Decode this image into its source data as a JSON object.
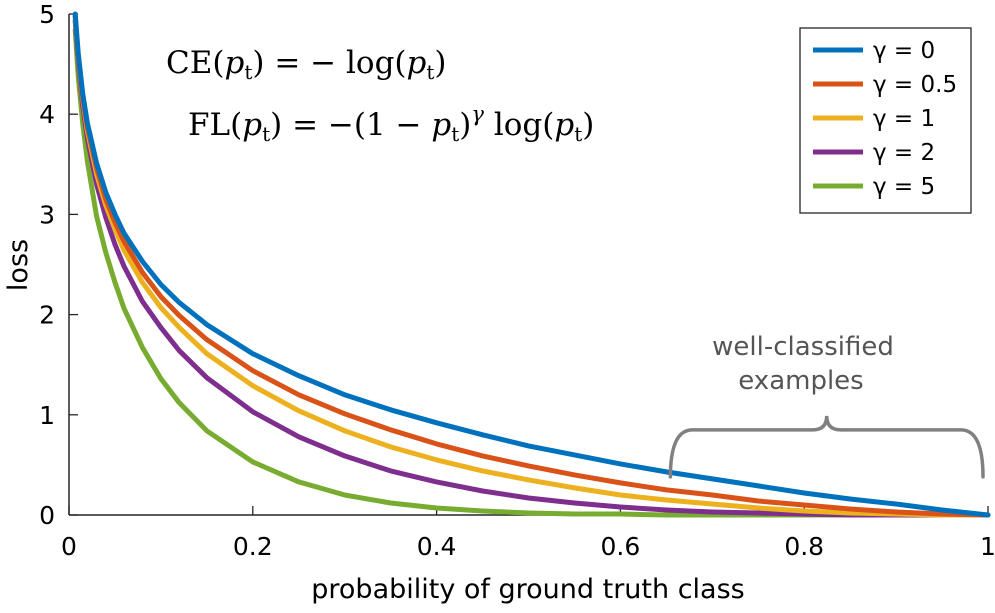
{
  "chart_data": {
    "type": "line",
    "xlabel": "probability of ground truth class",
    "ylabel": "loss",
    "xlim": [
      0,
      1
    ],
    "ylim": [
      0,
      5
    ],
    "xticks": [
      "0",
      "0.2",
      "0.4",
      "0.6",
      "0.8",
      "1"
    ],
    "yticks": [
      "0",
      "1",
      "2",
      "3",
      "4",
      "5"
    ],
    "x": [
      0.0067,
      0.01,
      0.015,
      0.02,
      0.03,
      0.04,
      0.05,
      0.06,
      0.08,
      0.1,
      0.12,
      0.15,
      0.2,
      0.25,
      0.3,
      0.35,
      0.4,
      0.45,
      0.5,
      0.55,
      0.6,
      0.65,
      0.7,
      0.75,
      0.8,
      0.85,
      0.9,
      0.95,
      1.0
    ],
    "series": [
      {
        "name": "γ = 0",
        "color": "#0072BD",
        "gamma": 0,
        "values": [
          5.0,
          4.61,
          4.2,
          3.91,
          3.51,
          3.22,
          3.0,
          2.81,
          2.53,
          2.3,
          2.12,
          1.9,
          1.61,
          1.39,
          1.2,
          1.05,
          0.92,
          0.8,
          0.69,
          0.6,
          0.51,
          0.43,
          0.36,
          0.29,
          0.22,
          0.16,
          0.11,
          0.05,
          0.0
        ]
      },
      {
        "name": "γ = 0.5",
        "color": "#D95319",
        "gamma": 0.5,
        "values": [
          4.98,
          4.58,
          4.16,
          3.87,
          3.46,
          3.15,
          2.92,
          2.73,
          2.42,
          2.18,
          1.99,
          1.75,
          1.44,
          1.2,
          1.01,
          0.85,
          0.71,
          0.59,
          0.49,
          0.4,
          0.32,
          0.25,
          0.2,
          0.14,
          0.1,
          0.06,
          0.03,
          0.01,
          0.0
        ]
      },
      {
        "name": "γ = 1",
        "color": "#EDB120",
        "gamma": 1,
        "values": [
          4.97,
          4.56,
          4.14,
          3.83,
          3.4,
          3.09,
          2.85,
          2.64,
          2.32,
          2.07,
          1.87,
          1.61,
          1.29,
          1.04,
          0.84,
          0.68,
          0.55,
          0.44,
          0.35,
          0.27,
          0.2,
          0.15,
          0.11,
          0.07,
          0.04,
          0.02,
          0.01,
          0.0,
          0.0
        ]
      },
      {
        "name": "γ = 2",
        "color": "#7E2F8E",
        "gamma": 2,
        "values": [
          4.93,
          4.52,
          4.08,
          3.76,
          3.3,
          2.97,
          2.7,
          2.48,
          2.13,
          1.87,
          1.64,
          1.37,
          1.03,
          0.78,
          0.59,
          0.44,
          0.33,
          0.24,
          0.17,
          0.12,
          0.08,
          0.05,
          0.03,
          0.02,
          0.01,
          0.0,
          0.0,
          0.0,
          0.0
        ]
      },
      {
        "name": "γ = 5",
        "color": "#77AC30",
        "gamma": 5,
        "values": [
          4.84,
          4.38,
          3.9,
          3.53,
          2.98,
          2.62,
          2.32,
          2.06,
          1.67,
          1.36,
          1.12,
          0.84,
          0.53,
          0.33,
          0.2,
          0.12,
          0.07,
          0.04,
          0.02,
          0.01,
          0.01,
          0.0,
          0.0,
          0.0,
          0.0,
          0.0,
          0.0,
          0.0,
          0.0
        ]
      }
    ],
    "legend_position": "top-right",
    "grid": false,
    "equations": {
      "ce": {
        "lhs_name": "CE",
        "arg": "p",
        "sub": "t",
        "rhs_op": "= − log(",
        "rhs_arg": "p",
        "rhs_sub": "t",
        "close": ")"
      },
      "fl": {
        "lhs_name": "FL",
        "arg": "p",
        "sub": "t",
        "rhs_op": "= −(1 − ",
        "rhs_arg": "p",
        "rhs_sub": "t",
        "pow": "γ",
        "log": " log(",
        "log_arg": "p",
        "log_sub": "t",
        "close": ")"
      }
    },
    "annotation": {
      "line1": "well-classified",
      "line2": "examples",
      "brace_range": [
        0.6,
        1.0
      ],
      "brace_y": 0.9
    }
  }
}
